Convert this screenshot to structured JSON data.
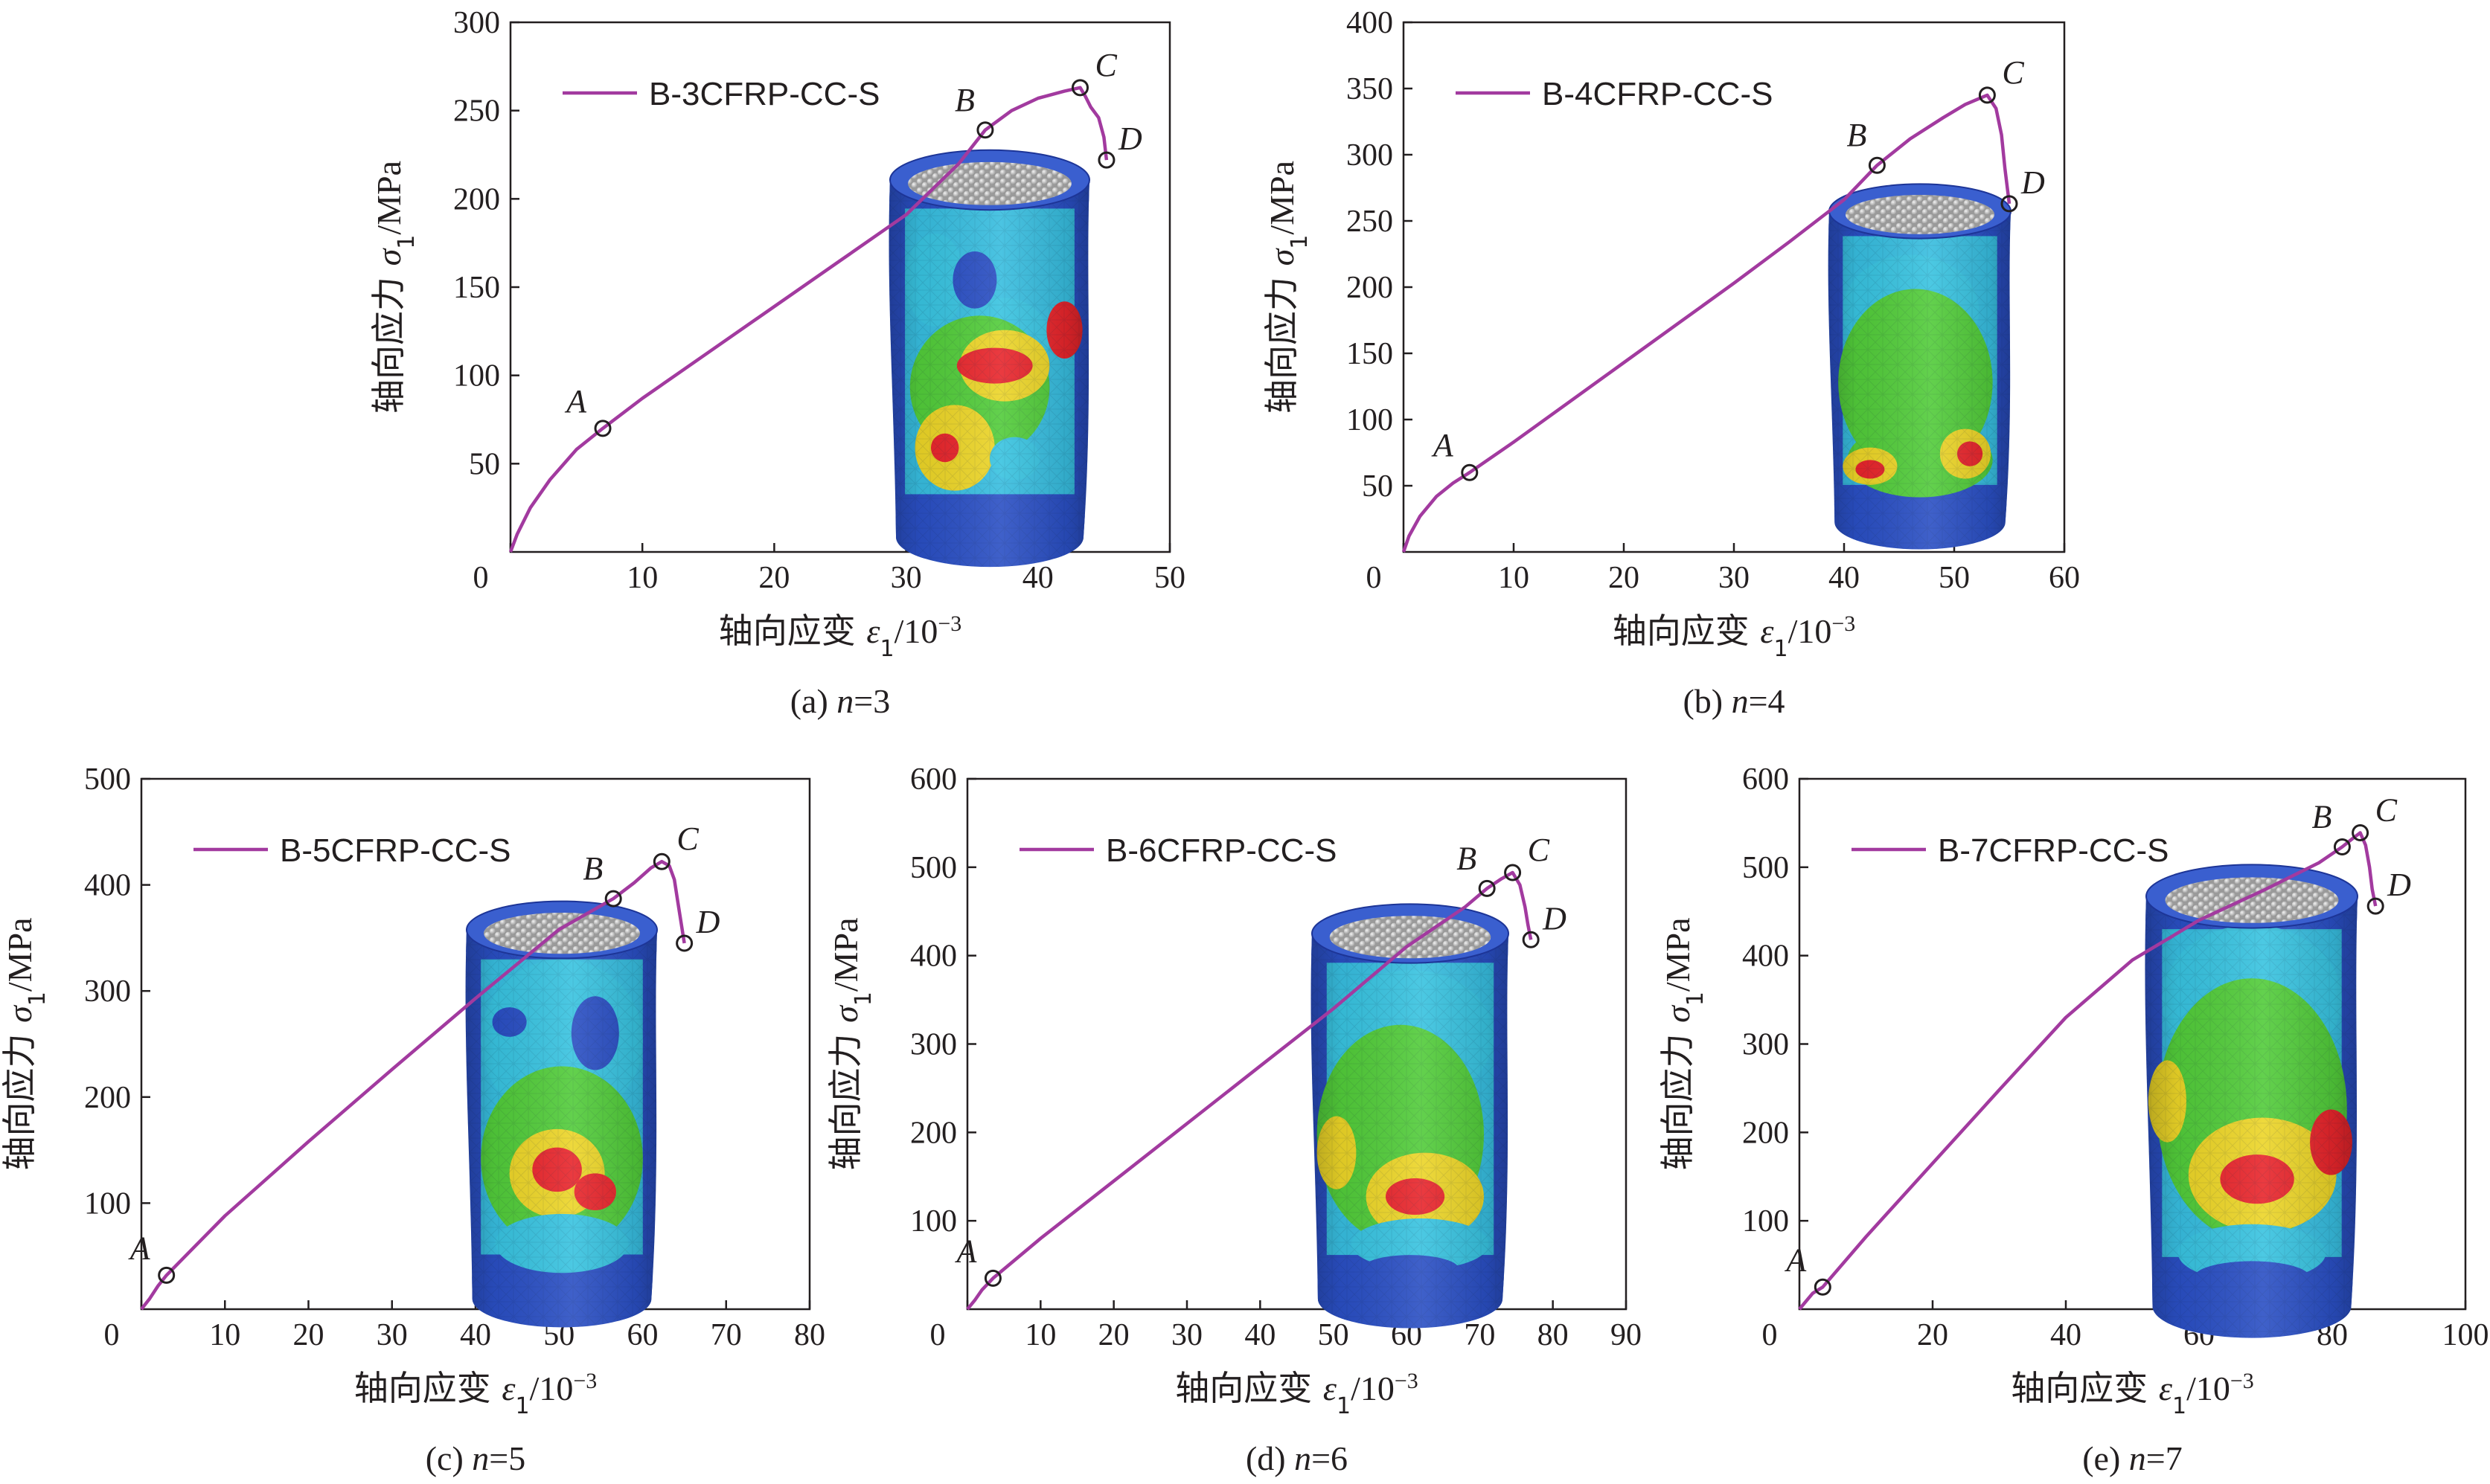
{
  "colors": {
    "curve": "#a23a9f",
    "axis": "#231f20",
    "contour_low": "#2a4fc4",
    "contour_mid": "#38c3e0",
    "contour_green": "#52cc3a",
    "contour_yellow": "#ecd527",
    "contour_high": "#e8252b"
  },
  "chart_data": [
    {
      "type": "line",
      "panel": "a",
      "caption": {
        "prefix": "(a) ",
        "var": "n",
        "rest": "=3"
      },
      "xlabel": {
        "main": "轴向应变 ",
        "sym": "ε",
        "sub": "1",
        "unit": "/10",
        "sup": "−3"
      },
      "ylabel": {
        "main": "轴向应力 ",
        "sym": "σ",
        "sub": "1",
        "unit": "/MPa"
      },
      "xlim": [
        0,
        50
      ],
      "ylim": [
        0,
        300
      ],
      "xticks": [
        0,
        10,
        20,
        30,
        40,
        50
      ],
      "yticks": [
        50,
        100,
        150,
        200,
        250,
        300
      ],
      "legend_position": "top-left",
      "series": [
        {
          "name": "B-3CFRP-CC-S",
          "x": [
            0,
            0.5,
            1.5,
            3,
            5,
            7,
            10,
            15,
            20,
            25,
            30,
            34,
            36,
            38,
            40,
            42,
            43.2,
            43.6,
            44,
            44.6,
            45,
            45.2
          ],
          "y": [
            0,
            10,
            25,
            41,
            58,
            70,
            87,
            113,
            139,
            165,
            191,
            220,
            239,
            250,
            257,
            261,
            263,
            258,
            252,
            246,
            235,
            222
          ]
        }
      ],
      "points": [
        {
          "label": "A",
          "x": 7,
          "y": 70
        },
        {
          "label": "B",
          "x": 36,
          "y": 239
        },
        {
          "label": "C",
          "x": 43.2,
          "y": 263
        },
        {
          "label": "D",
          "x": 45.2,
          "y": 222
        }
      ]
    },
    {
      "type": "line",
      "panel": "b",
      "caption": {
        "prefix": "(b) ",
        "var": "n",
        "rest": "=4"
      },
      "xlabel": {
        "main": "轴向应变 ",
        "sym": "ε",
        "sub": "1",
        "unit": "/10",
        "sup": "−3"
      },
      "ylabel": {
        "main": "轴向应力 ",
        "sym": "σ",
        "sub": "1",
        "unit": "/MPa"
      },
      "xlim": [
        0,
        60
      ],
      "ylim": [
        0,
        400
      ],
      "xticks": [
        0,
        10,
        20,
        30,
        40,
        50,
        60
      ],
      "yticks": [
        50,
        100,
        150,
        200,
        250,
        300,
        350,
        400
      ],
      "legend_position": "top-left",
      "series": [
        {
          "name": "B-4CFRP-CC-S",
          "x": [
            0,
            0.5,
            1.5,
            3,
            4.5,
            6,
            10,
            15,
            20,
            25,
            30,
            35,
            40,
            43,
            46,
            49,
            51,
            53,
            53.8,
            54.3,
            54.6,
            55
          ],
          "y": [
            0,
            12,
            27,
            42,
            52,
            60,
            83,
            113,
            143,
            173,
            203,
            234,
            266,
            292,
            312,
            328,
            338,
            345,
            335,
            315,
            290,
            263
          ]
        }
      ],
      "points": [
        {
          "label": "A",
          "x": 6,
          "y": 60
        },
        {
          "label": "B",
          "x": 43,
          "y": 292
        },
        {
          "label": "C",
          "x": 53,
          "y": 345
        },
        {
          "label": "D",
          "x": 55,
          "y": 263
        }
      ]
    },
    {
      "type": "line",
      "panel": "c",
      "caption": {
        "prefix": "(c) ",
        "var": "n",
        "rest": "=5"
      },
      "xlabel": {
        "main": "轴向应变 ",
        "sym": "ε",
        "sub": "1",
        "unit": "/10",
        "sup": "−3"
      },
      "ylabel": {
        "main": "轴向应力 ",
        "sym": "σ",
        "sub": "1",
        "unit": "/MPa"
      },
      "xlim": [
        0,
        80
      ],
      "ylim": [
        0,
        500
      ],
      "xticks": [
        0,
        10,
        20,
        30,
        40,
        50,
        60,
        70,
        80
      ],
      "yticks": [
        100,
        200,
        300,
        400,
        500
      ],
      "legend_position": "top-left",
      "series": [
        {
          "name": "B-5CFRP-CC-S",
          "x": [
            0,
            1,
            2,
            3,
            10,
            20,
            30,
            40,
            50,
            56.5,
            59,
            61,
            62.3,
            63.2,
            63.8,
            64.2,
            64.6,
            65
          ],
          "y": [
            0,
            10,
            22,
            32,
            88,
            158,
            226,
            293,
            358,
            387,
            402,
            416,
            422,
            418,
            405,
            385,
            365,
            345
          ]
        }
      ],
      "points": [
        {
          "label": "A",
          "x": 3,
          "y": 32
        },
        {
          "label": "B",
          "x": 56.5,
          "y": 387
        },
        {
          "label": "C",
          "x": 62.3,
          "y": 422
        },
        {
          "label": "D",
          "x": 65,
          "y": 345
        }
      ]
    },
    {
      "type": "line",
      "panel": "d",
      "caption": {
        "prefix": "(d) ",
        "var": "n",
        "rest": "=6"
      },
      "xlabel": {
        "main": "轴向应变 ",
        "sym": "ε",
        "sub": "1",
        "unit": "/10",
        "sup": "−3"
      },
      "ylabel": {
        "main": "轴向应力 ",
        "sym": "σ",
        "sub": "1",
        "unit": "/MPa"
      },
      "xlim": [
        0,
        90
      ],
      "ylim": [
        0,
        600
      ],
      "xticks": [
        0,
        10,
        20,
        30,
        40,
        50,
        60,
        70,
        80,
        90
      ],
      "yticks": [
        100,
        200,
        300,
        400,
        500,
        600
      ],
      "legend_position": "top-left",
      "series": [
        {
          "name": "B-6CFRP-CC-S",
          "x": [
            0,
            1,
            2,
            3.5,
            10,
            20,
            30,
            40,
            50,
            60,
            68,
            71,
            73,
            74.5,
            75.5,
            76.2,
            76.6,
            77
          ],
          "y": [
            0,
            10,
            22,
            35,
            80,
            145,
            210,
            275,
            340,
            410,
            455,
            476,
            487,
            494,
            480,
            455,
            435,
            418
          ]
        }
      ],
      "points": [
        {
          "label": "A",
          "x": 3.5,
          "y": 35
        },
        {
          "label": "B",
          "x": 71,
          "y": 476
        },
        {
          "label": "C",
          "x": 74.5,
          "y": 494
        },
        {
          "label": "D",
          "x": 77,
          "y": 418
        }
      ]
    },
    {
      "type": "line",
      "panel": "e",
      "caption": {
        "prefix": "(e) ",
        "var": "n",
        "rest": "=7"
      },
      "xlabel": {
        "main": "轴向应变 ",
        "sym": "ε",
        "sub": "1",
        "unit": "/10",
        "sup": "−3"
      },
      "ylabel": {
        "main": "轴向应力 ",
        "sym": "σ",
        "sub": "1",
        "unit": "/MPa"
      },
      "xlim": [
        0,
        100
      ],
      "ylim": [
        0,
        600
      ],
      "xticks": [
        0,
        20,
        40,
        60,
        80,
        100
      ],
      "yticks": [
        100,
        200,
        300,
        400,
        500,
        600
      ],
      "legend_position": "top-left",
      "series": [
        {
          "name": "B-7CFRP-CC-S",
          "x": [
            0,
            1,
            2,
            3.5,
            10,
            20,
            30,
            40,
            50,
            60,
            70,
            78,
            81.5,
            83,
            84.2,
            85,
            85.6,
            86,
            86.5
          ],
          "y": [
            0,
            9,
            18,
            25,
            82,
            165,
            248,
            330,
            395,
            440,
            475,
            505,
            523,
            532,
            539,
            525,
            500,
            475,
            456
          ]
        }
      ],
      "points": [
        {
          "label": "A",
          "x": 3.5,
          "y": 25
        },
        {
          "label": "B",
          "x": 81.5,
          "y": 523
        },
        {
          "label": "C",
          "x": 84.2,
          "y": 539
        },
        {
          "label": "D",
          "x": 86.5,
          "y": 456
        }
      ]
    }
  ]
}
